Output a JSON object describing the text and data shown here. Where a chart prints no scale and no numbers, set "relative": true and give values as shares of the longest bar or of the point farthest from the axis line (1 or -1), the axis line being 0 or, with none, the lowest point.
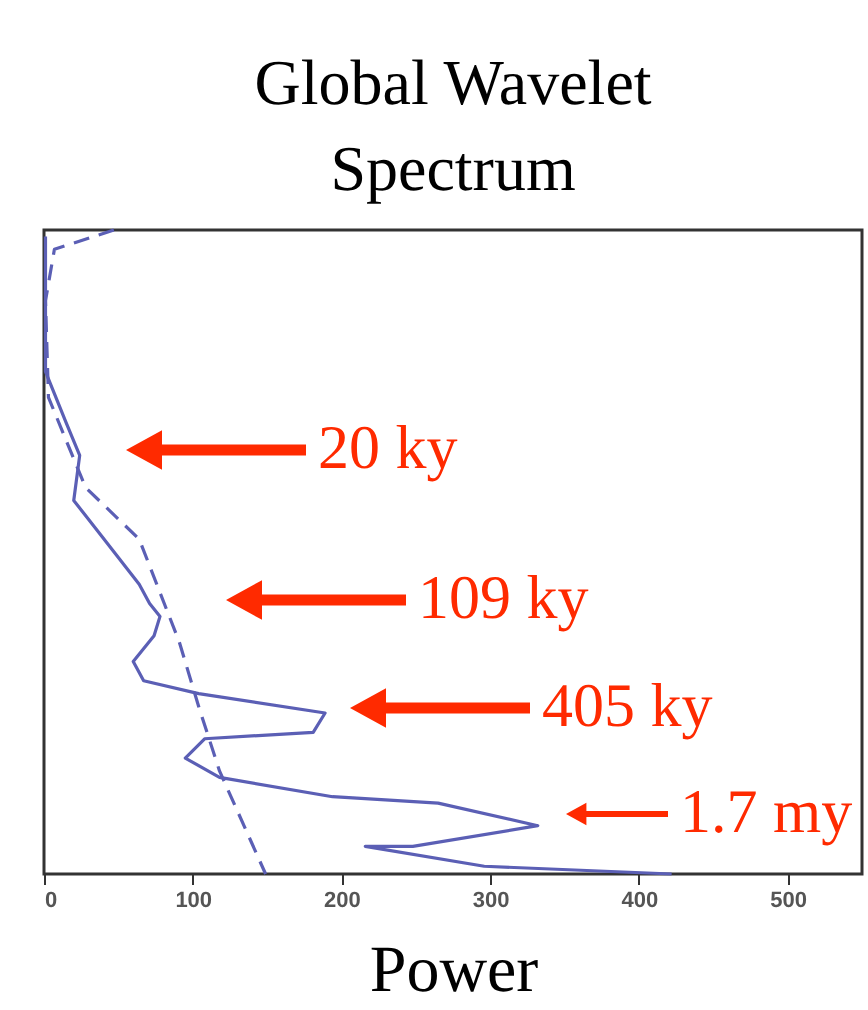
{
  "chart_data": {
    "type": "line",
    "title": "Global Wavelet Spectrum",
    "xlabel": "Power",
    "relative": true,
    "xlim": [
      0,
      550
    ],
    "xticks": [
      0,
      100,
      200,
      300,
      400,
      500
    ],
    "grid": false,
    "series": [
      {
        "color": "#5b5fb5",
        "line_style": "solid",
        "x": [
          1,
          1,
          15,
          24,
          20,
          37,
          64,
          71,
          78,
          74,
          60,
          67,
          104,
          189,
          181,
          108,
          95,
          118,
          194,
          265,
          332,
          248,
          216,
          296,
          422
        ],
        "values": [
          0.99,
          0.78,
          0.7,
          0.65,
          0.58,
          0.53,
          0.45,
          0.42,
          0.4,
          0.37,
          0.33,
          0.3,
          0.28,
          0.25,
          0.22,
          0.21,
          0.18,
          0.15,
          0.12,
          0.11,
          0.075,
          0.043,
          0.043,
          0.012,
          0
        ]
      },
      {
        "color": "#5b5fb5",
        "line_style": "dashed",
        "x": [
          47,
          7,
          1,
          3,
          28,
          64,
          91,
          104,
          118,
          149
        ],
        "values": [
          1,
          0.97,
          0.89,
          0.74,
          0.6,
          0.52,
          0.36,
          0.26,
          0.16,
          0
        ]
      }
    ],
    "annotations": [
      "20 ky",
      "109 ky",
      "405 ky",
      "1.7 my"
    ]
  }
}
